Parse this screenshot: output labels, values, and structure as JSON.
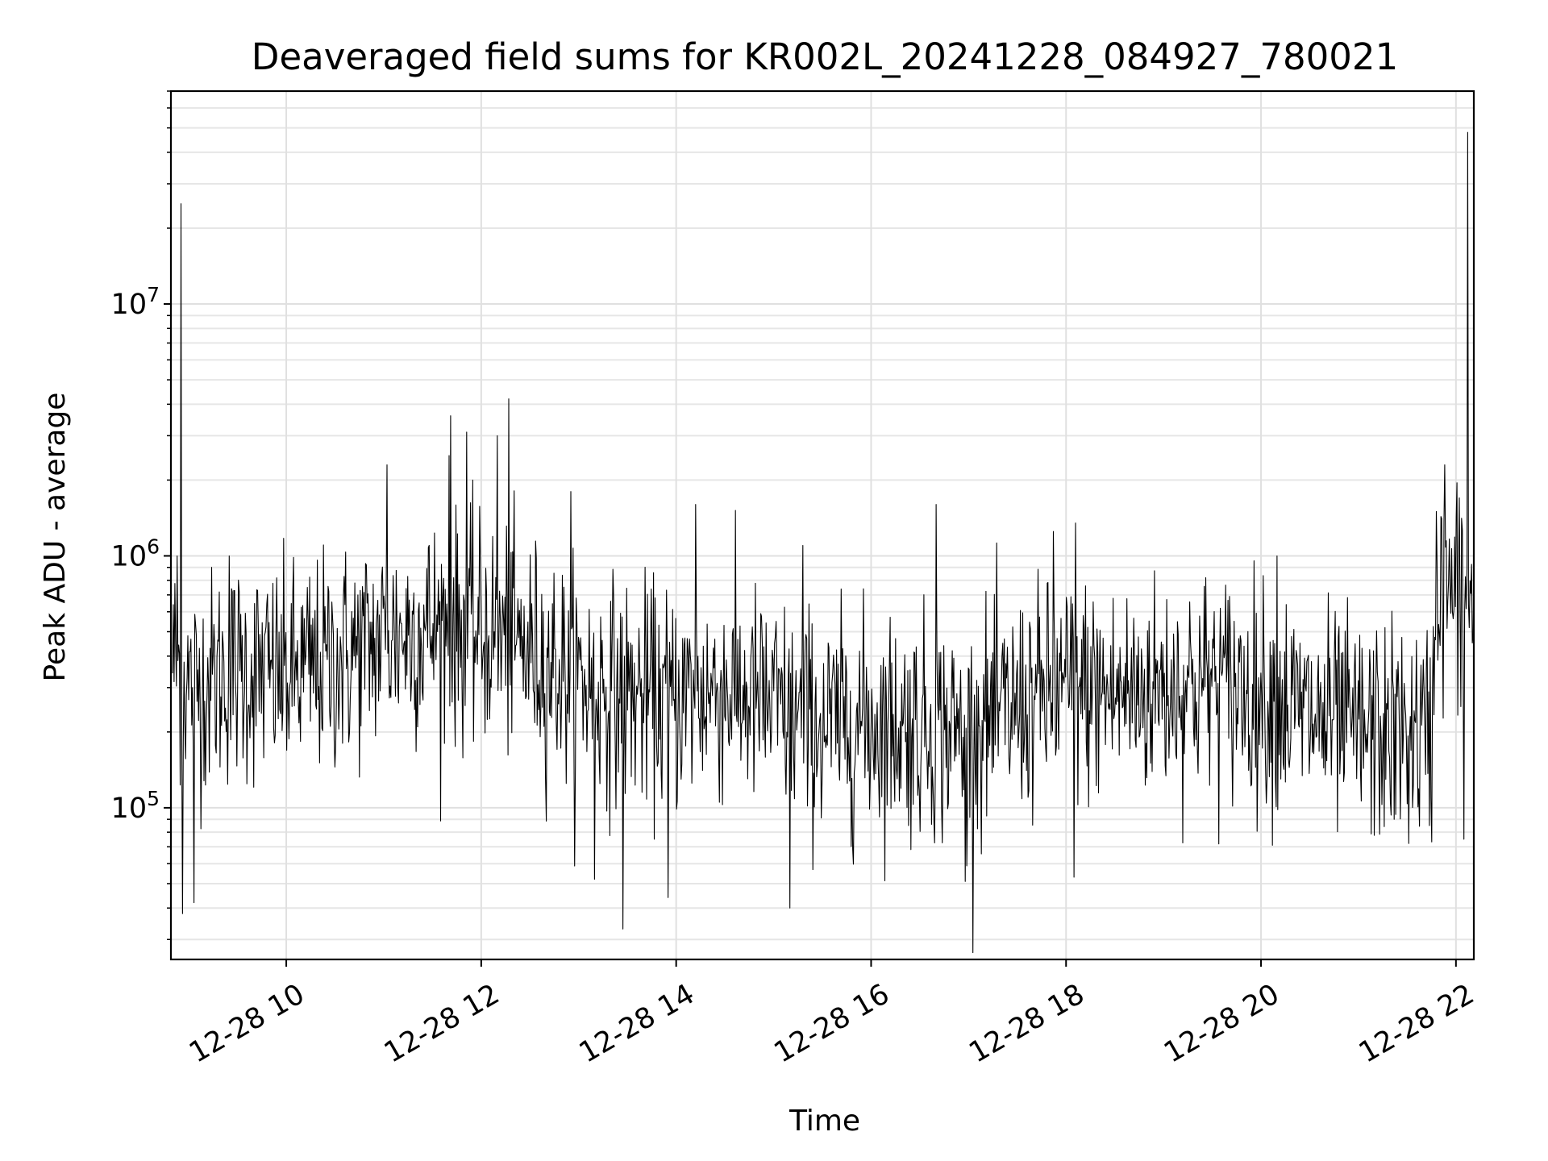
{
  "chart_data": {
    "type": "line",
    "title": "Deaveraged field sums for KR002L_20241228_084927_780021",
    "xlabel": "Time",
    "ylabel": "Peak ADU - average",
    "xscale": "time",
    "yscale": "log",
    "xlim": [
      "12-28 08:49",
      "12-28 22:11"
    ],
    "ylim": [
      25000,
      70000000
    ],
    "grid": true,
    "x_ticks": [
      {
        "t": "12-28 10",
        "label": "12-28 10"
      },
      {
        "t": "12-28 12",
        "label": "12-28 12"
      },
      {
        "t": "12-28 14",
        "label": "12-28 14"
      },
      {
        "t": "12-28 16",
        "label": "12-28 16"
      },
      {
        "t": "12-28 18",
        "label": "12-28 18"
      },
      {
        "t": "12-28 20",
        "label": "12-28 20"
      },
      {
        "t": "12-28 22",
        "label": "12-28 22"
      }
    ],
    "y_ticks": [
      {
        "value": 100000,
        "base": "10",
        "exp": "5"
      },
      {
        "value": 1000000,
        "base": "10",
        "exp": "6"
      },
      {
        "value": 10000000,
        "base": "10",
        "exp": "7"
      }
    ],
    "series": [
      {
        "color": "#000000",
        "baseline": [
          [
            "12-28 08:50",
            400000
          ],
          [
            "12-28 09:00",
            300000
          ],
          [
            "12-28 09:30",
            350000
          ],
          [
            "12-28 10:00",
            330000
          ],
          [
            "12-28 10:30",
            380000
          ],
          [
            "12-28 11:00",
            470000
          ],
          [
            "12-28 11:30",
            520000
          ],
          [
            "12-28 12:00",
            500000
          ],
          [
            "12-28 12:30",
            420000
          ],
          [
            "12-28 13:00",
            320000
          ],
          [
            "12-28 13:30",
            280000
          ],
          [
            "12-28 14:00",
            270000
          ],
          [
            "12-28 14:30",
            300000
          ],
          [
            "12-28 15:00",
            250000
          ],
          [
            "12-28 15:30",
            210000
          ],
          [
            "12-28 16:00",
            220000
          ],
          [
            "12-28 16:30",
            210000
          ],
          [
            "12-28 17:00",
            200000
          ],
          [
            "12-28 17:30",
            250000
          ],
          [
            "12-28 18:00",
            300000
          ],
          [
            "12-28 18:30",
            280000
          ],
          [
            "12-28 19:00",
            300000
          ],
          [
            "12-28 19:30",
            320000
          ],
          [
            "12-28 20:00",
            280000
          ],
          [
            "12-28 20:30",
            230000
          ],
          [
            "12-28 21:00",
            200000
          ],
          [
            "12-28 21:45",
            190000
          ],
          [
            "12-28 21:48",
            700000
          ],
          [
            "12-28 22:11",
            700000
          ]
        ],
        "peaks": [
          [
            "12-28 08:55",
            25000000
          ],
          [
            "12-28 08:53",
            1000000
          ],
          [
            "12-28 08:56",
            38000
          ],
          [
            "12-28 09:03",
            42000
          ],
          [
            "12-28 09:25",
            1000000
          ],
          [
            "12-28 11:02",
            2300000
          ],
          [
            "12-28 11:40",
            2500000
          ],
          [
            "12-28 11:41",
            3600000
          ],
          [
            "12-28 11:51",
            3100000
          ],
          [
            "12-28 12:10",
            3000000
          ],
          [
            "12-28 12:17",
            4200000
          ],
          [
            "12-28 12:55",
            1800000
          ],
          [
            "12-28 13:27",
            33000
          ],
          [
            "12-28 13:10",
            52000
          ],
          [
            "12-28 13:55",
            44000
          ],
          [
            "12-28 14:12",
            1600000
          ],
          [
            "12-28 15:10",
            40000
          ],
          [
            "12-28 15:18",
            1100000
          ],
          [
            "12-28 16:40",
            1600000
          ],
          [
            "12-28 16:58",
            51000
          ],
          [
            "12-28 17:52",
            1250000
          ],
          [
            "12-28 18:06",
            1350000
          ],
          [
            "12-28 18:05",
            53000
          ],
          [
            "12-28 20:10",
            1000000
          ],
          [
            "12-28 21:48",
            1500000
          ],
          [
            "12-28 21:53",
            2300000
          ],
          [
            "12-28 22:02",
            1700000
          ],
          [
            "12-28 22:05",
            2000000
          ],
          [
            "12-28 22:07",
            48000000
          ],
          [
            "12-28 22:05",
            75000
          ]
        ],
        "n_points": 1700
      }
    ]
  }
}
